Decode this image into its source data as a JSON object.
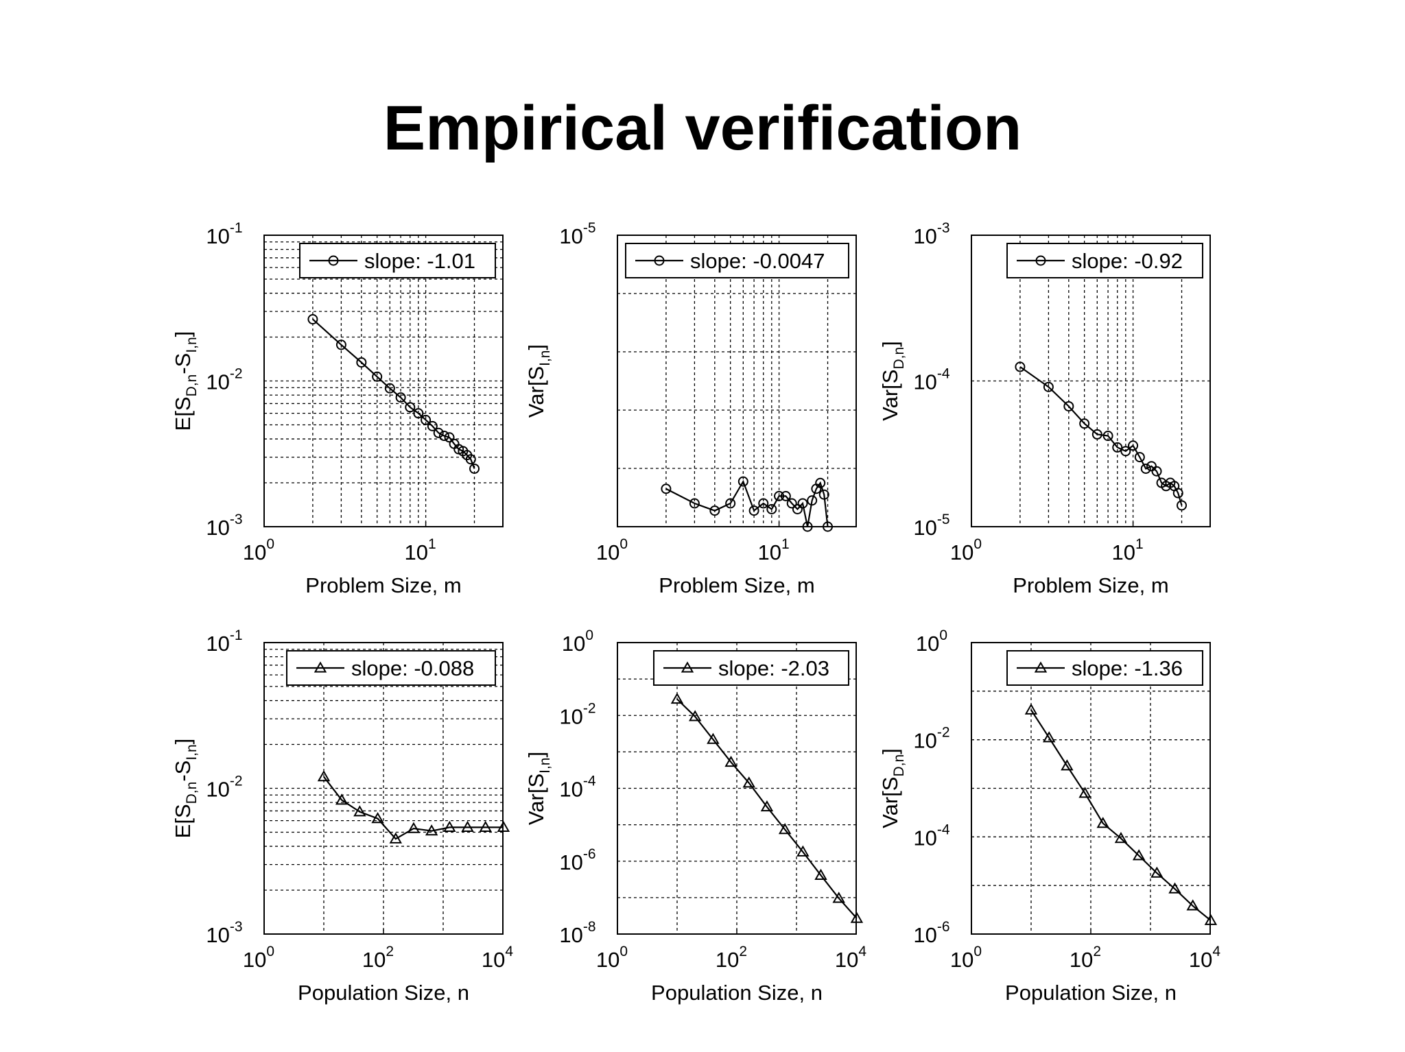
{
  "title": "Empirical verification",
  "colors": {
    "line": "#000000",
    "grid": "#000000",
    "background": "#ffffff"
  },
  "chart_data": [
    {
      "type": "line",
      "marker": "circle",
      "xlabel": "Problem Size, m",
      "ylabel": [
        "E[S",
        "D,n",
        "-S",
        "I,n",
        "]"
      ],
      "x_scale": "log",
      "y_scale": "log",
      "xlim": [
        1,
        30
      ],
      "ylim": [
        0.001,
        0.1
      ],
      "x_ticks": [
        {
          "base": "10",
          "exp": "0"
        },
        {
          "base": "10",
          "exp": "1"
        }
      ],
      "y_ticks": [
        {
          "base": "10",
          "exp": "-1"
        },
        {
          "base": "10",
          "exp": "-2"
        },
        {
          "base": "10",
          "exp": "-3"
        }
      ],
      "grid": true,
      "legend_position": "top-right",
      "series": [
        {
          "name": "slope: -1.01",
          "x": [
            2,
            3,
            4,
            5,
            6,
            7,
            8,
            9,
            10,
            11,
            12,
            13,
            14,
            15,
            16,
            17,
            18,
            19,
            20
          ],
          "y": [
            0.0265,
            0.0177,
            0.0134,
            0.0107,
            0.0089,
            0.0077,
            0.0066,
            0.006,
            0.0054,
            0.0049,
            0.0044,
            0.0042,
            0.0041,
            0.0037,
            0.0034,
            0.0033,
            0.0031,
            0.0029,
            0.0025
          ]
        }
      ]
    },
    {
      "type": "line",
      "marker": "circle",
      "xlabel": "Problem Size, m",
      "ylabel": [
        "Var[S",
        "I,n",
        "]"
      ],
      "x_scale": "log",
      "y_scale": "linear",
      "xlim": [
        1,
        30
      ],
      "ylim": [
        0,
        1
      ],
      "x_ticks": [
        {
          "base": "10",
          "exp": "0"
        },
        {
          "base": "10",
          "exp": "1"
        }
      ],
      "y_ticks": [
        {
          "base": "10",
          "exp": "-5"
        }
      ],
      "grid": true,
      "legend_position": "top-right",
      "series": [
        {
          "name": "slope: -0.0047",
          "x": [
            2,
            3,
            4,
            5,
            6,
            7,
            8,
            9,
            10,
            11,
            12,
            13,
            14,
            15,
            16,
            17,
            18,
            19,
            20
          ],
          "y": [
            0.13,
            0.08,
            0.055,
            0.08,
            0.155,
            0.055,
            0.08,
            0.06,
            0.105,
            0.105,
            0.08,
            0.06,
            0.08,
            0.0,
            0.09,
            0.13,
            0.15,
            0.11,
            0.0
          ]
        }
      ]
    },
    {
      "type": "line",
      "marker": "circle",
      "xlabel": "Problem Size, m",
      "ylabel": [
        "Var[S",
        "D,n",
        "]"
      ],
      "x_scale": "log",
      "y_scale": "log",
      "xlim": [
        1,
        30
      ],
      "ylim": [
        1e-05,
        0.001
      ],
      "x_ticks": [
        {
          "base": "10",
          "exp": "0"
        },
        {
          "base": "10",
          "exp": "1"
        }
      ],
      "y_ticks": [
        {
          "base": "10",
          "exp": "-3"
        },
        {
          "base": "10",
          "exp": "-4"
        },
        {
          "base": "10",
          "exp": "-5"
        }
      ],
      "grid": true,
      "legend_position": "top-right",
      "series": [
        {
          "name": "slope: -0.92",
          "x": [
            2,
            3,
            4,
            5,
            6,
            7,
            8,
            9,
            10,
            11,
            12,
            13,
            14,
            15,
            16,
            17,
            18,
            19,
            20
          ],
          "y": [
            0.000125,
            9.1e-05,
            6.7e-05,
            5.1e-05,
            4.3e-05,
            4.2e-05,
            3.5e-05,
            3.3e-05,
            3.6e-05,
            3e-05,
            2.5e-05,
            2.6e-05,
            2.4e-05,
            2e-05,
            1.9e-05,
            2e-05,
            1.9e-05,
            1.7e-05,
            1.4e-05
          ]
        }
      ]
    },
    {
      "type": "line",
      "marker": "triangle",
      "xlabel": "Population Size, n",
      "ylabel": [
        "E[S",
        "D,n",
        "-S",
        "I,n",
        "]"
      ],
      "x_scale": "log",
      "y_scale": "log",
      "xlim": [
        1,
        10000
      ],
      "ylim": [
        0.001,
        0.1
      ],
      "x_ticks": [
        {
          "base": "10",
          "exp": "0"
        },
        {
          "base": "10",
          "exp": "2"
        },
        {
          "base": "10",
          "exp": "4"
        }
      ],
      "y_ticks": [
        {
          "base": "10",
          "exp": "-1"
        },
        {
          "base": "10",
          "exp": "-2"
        },
        {
          "base": "10",
          "exp": "-3"
        }
      ],
      "grid": true,
      "legend_position": "top-right",
      "series": [
        {
          "name": "slope: -0.088",
          "x": [
            10,
            20,
            40,
            80,
            160,
            320,
            640,
            1280,
            2560,
            5120,
            10240
          ],
          "y": [
            0.012,
            0.0083,
            0.0069,
            0.0062,
            0.0045,
            0.0053,
            0.0051,
            0.0054,
            0.0054,
            0.0054,
            0.0054
          ]
        }
      ]
    },
    {
      "type": "line",
      "marker": "triangle",
      "xlabel": "Population Size, n",
      "ylabel": [
        "Var[S",
        "I,n",
        "]"
      ],
      "x_scale": "log",
      "y_scale": "log",
      "xlim": [
        1,
        10000
      ],
      "ylim": [
        1e-08,
        1
      ],
      "x_ticks": [
        {
          "base": "10",
          "exp": "0"
        },
        {
          "base": "10",
          "exp": "2"
        },
        {
          "base": "10",
          "exp": "4"
        }
      ],
      "y_ticks": [
        {
          "base": "10",
          "exp": "0"
        },
        {
          "base": "10",
          "exp": "-2"
        },
        {
          "base": "10",
          "exp": "-4"
        },
        {
          "base": "10",
          "exp": "-6"
        },
        {
          "base": "10",
          "exp": "-8"
        }
      ],
      "grid": true,
      "legend_position": "top-right",
      "series": [
        {
          "name": "slope: -2.03",
          "x": [
            10,
            20,
            40,
            80,
            160,
            320,
            640,
            1280,
            2560,
            5120,
            10240
          ],
          "y": [
            0.028,
            0.0093,
            0.0022,
            0.00052,
            0.00014,
            3.1e-05,
            7.4e-06,
            1.8e-06,
            4.1e-07,
            9.6e-08,
            2.7e-08
          ]
        }
      ]
    },
    {
      "type": "line",
      "marker": "triangle",
      "xlabel": "Population Size, n",
      "ylabel": [
        "Var[S",
        "D,n",
        "]"
      ],
      "x_scale": "log",
      "y_scale": "log",
      "xlim": [
        1,
        10000
      ],
      "ylim": [
        1e-06,
        1
      ],
      "x_ticks": [
        {
          "base": "10",
          "exp": "0"
        },
        {
          "base": "10",
          "exp": "2"
        },
        {
          "base": "10",
          "exp": "4"
        }
      ],
      "y_ticks": [
        {
          "base": "10",
          "exp": "0"
        },
        {
          "base": "10",
          "exp": "-2"
        },
        {
          "base": "10",
          "exp": "-4"
        },
        {
          "base": "10",
          "exp": "-6"
        }
      ],
      "grid": true,
      "legend_position": "top-right",
      "series": [
        {
          "name": "slope: -1.36",
          "x": [
            10,
            20,
            40,
            80,
            160,
            320,
            640,
            1280,
            2560,
            5120,
            10240
          ],
          "y": [
            0.041,
            0.011,
            0.0029,
            0.00079,
            0.00019,
            9.3e-05,
            4.1e-05,
            1.8e-05,
            8.5e-06,
            3.8e-06,
            1.9e-06
          ]
        }
      ]
    }
  ]
}
